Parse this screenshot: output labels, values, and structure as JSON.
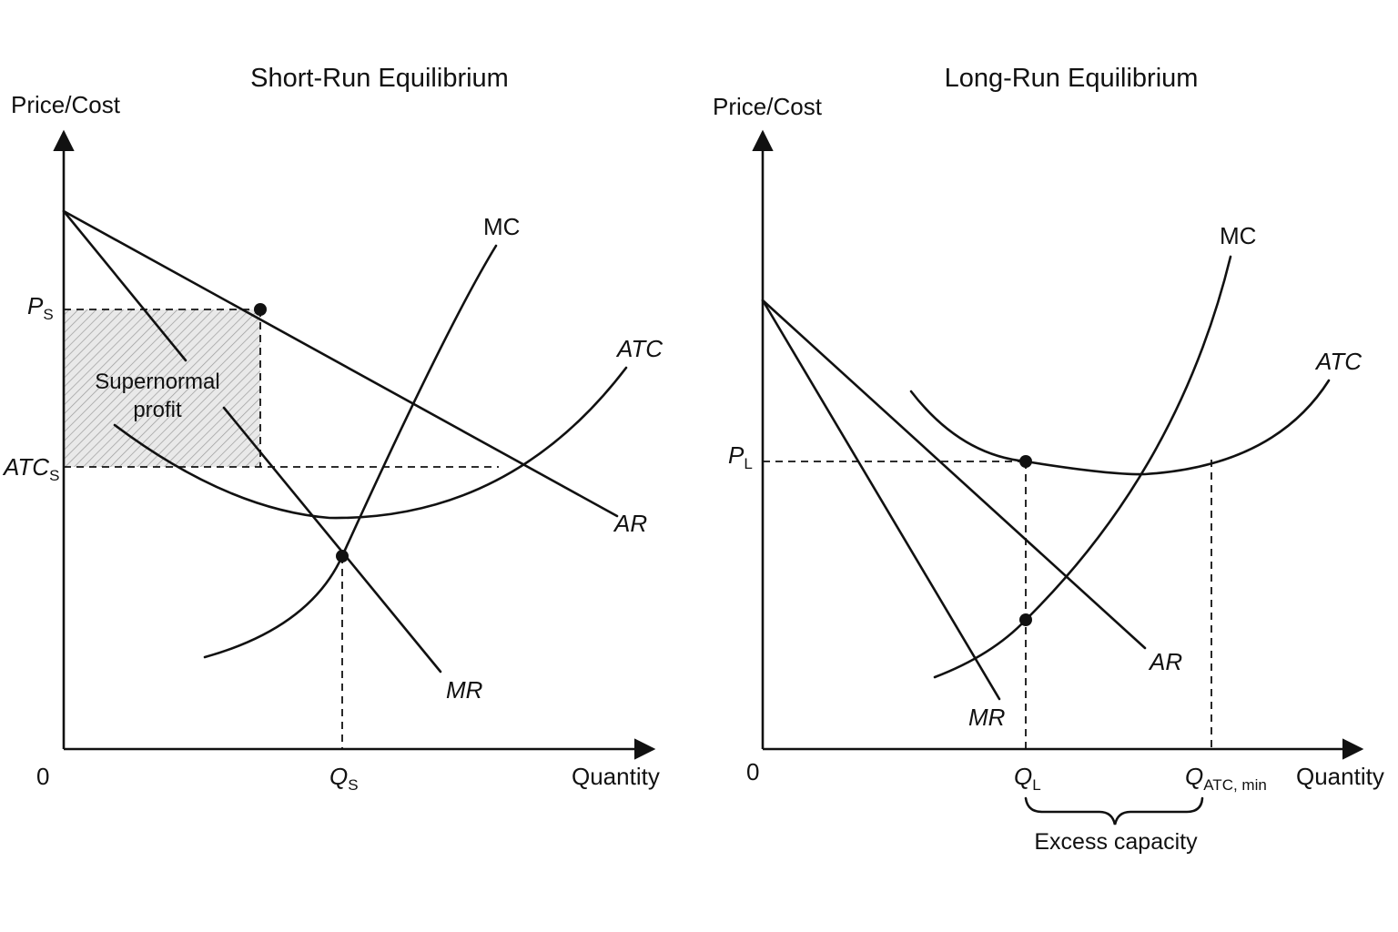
{
  "colors": {
    "ink": "#111111",
    "profit_hatch": "#9a9a9a",
    "background": "#ffffff"
  },
  "short_run": {
    "title": "Short-Run Equilibrium",
    "y_axis_label": "Price/Cost",
    "x_axis_label": "Quantity",
    "origin_label": "0",
    "price_label": {
      "main": "P",
      "sub": "S"
    },
    "atc_label": {
      "main": "ATC",
      "sub": "S"
    },
    "quantity_label": {
      "main": "Q",
      "sub": "S"
    },
    "mc_label": "MC",
    "atc_curve_label": "ATC",
    "ar_label": "AR",
    "mr_label": "MR",
    "profit_label_line1": "Supernormal",
    "profit_label_line2": "profit"
  },
  "long_run": {
    "title": "Long-Run Equilibrium",
    "y_axis_label": "Price/Cost",
    "x_axis_label": "Quantity",
    "origin_label": "0",
    "price_label": {
      "main": "P",
      "sub": "L"
    },
    "quantity_label": {
      "main": "Q",
      "sub": "L"
    },
    "qmin_label": {
      "main": "Q",
      "sub": "ATC, min"
    },
    "mc_label": "MC",
    "atc_curve_label": "ATC",
    "ar_label": "AR",
    "mr_label": "MR",
    "excess_capacity_label": "Excess capacity"
  }
}
